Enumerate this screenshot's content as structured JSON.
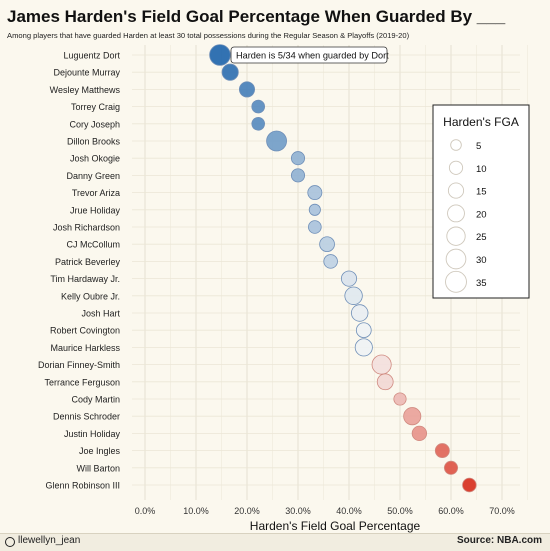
{
  "chart_data": {
    "type": "scatter",
    "title": "James Harden's Field Goal Percentage When Guarded By ___",
    "subtitle": "Among players that have guarded Harden at least 30 total possessions during the Regular Season & Playoffs (2019-20)",
    "xlabel": "Harden's Field Goal Percentage",
    "ylabel": "",
    "xlim": [
      -2,
      74
    ],
    "x_ticks": [
      "0.0%",
      "10.0%",
      "20.0%",
      "30.0%",
      "40.0%",
      "50.0%",
      "60.0%",
      "70.0%"
    ],
    "x_tick_values": [
      0,
      10,
      20,
      30,
      40,
      50,
      60,
      70
    ],
    "grid": true,
    "annotation": "Harden is 5/34 when guarded by Dort",
    "legend": {
      "title": "Harden's FGA",
      "placement": "right",
      "sizes": [
        5,
        10,
        15,
        20,
        25,
        30,
        35
      ]
    },
    "colors": {
      "low": "#2166ac",
      "mid": "#f7f7f7",
      "high": "#d7301f"
    },
    "points": [
      {
        "player": "Luguentz Dort",
        "fg_pct": 14.7,
        "fga": 34
      },
      {
        "player": "Dejounte Murray",
        "fg_pct": 16.7,
        "fga": 18
      },
      {
        "player": "Wesley Matthews",
        "fg_pct": 20.0,
        "fga": 15
      },
      {
        "player": "Torrey Craig",
        "fg_pct": 22.2,
        "fga": 9
      },
      {
        "player": "Cory Joseph",
        "fg_pct": 22.2,
        "fga": 9
      },
      {
        "player": "Dillon Brooks",
        "fg_pct": 25.8,
        "fga": 31
      },
      {
        "player": "Josh Okogie",
        "fg_pct": 30.0,
        "fga": 10
      },
      {
        "player": "Danny Green",
        "fg_pct": 30.0,
        "fga": 10
      },
      {
        "player": "Trevor Ariza",
        "fg_pct": 33.3,
        "fga": 12
      },
      {
        "player": "Jrue Holiday",
        "fg_pct": 33.3,
        "fga": 6
      },
      {
        "player": "Josh Richardson",
        "fg_pct": 33.3,
        "fga": 9
      },
      {
        "player": "CJ McCollum",
        "fg_pct": 35.7,
        "fga": 14
      },
      {
        "player": "Patrick Beverley",
        "fg_pct": 36.4,
        "fga": 11
      },
      {
        "player": "Tim Hardaway Jr.",
        "fg_pct": 40.0,
        "fga": 15
      },
      {
        "player": "Kelly Oubre Jr.",
        "fg_pct": 40.9,
        "fga": 22
      },
      {
        "player": "Josh Hart",
        "fg_pct": 42.1,
        "fga": 19
      },
      {
        "player": "Robert Covington",
        "fg_pct": 42.9,
        "fga": 14
      },
      {
        "player": "Maurice Harkless",
        "fg_pct": 42.9,
        "fga": 21
      },
      {
        "player": "Dorian Finney-Smith",
        "fg_pct": 46.4,
        "fga": 28
      },
      {
        "player": "Terrance Ferguson",
        "fg_pct": 47.1,
        "fga": 17
      },
      {
        "player": "Cody Martin",
        "fg_pct": 50.0,
        "fga": 8
      },
      {
        "player": "Dennis Schroder",
        "fg_pct": 52.4,
        "fga": 21
      },
      {
        "player": "Justin Holiday",
        "fg_pct": 53.8,
        "fga": 13
      },
      {
        "player": "Joe Ingles",
        "fg_pct": 58.3,
        "fga": 12
      },
      {
        "player": "Will Barton",
        "fg_pct": 60.0,
        "fga": 10
      },
      {
        "player": "Glenn Robinson III",
        "fg_pct": 63.6,
        "fga": 11
      }
    ]
  },
  "footer": {
    "handle": "llewellyn_jean",
    "source": "Source: NBA.com"
  }
}
